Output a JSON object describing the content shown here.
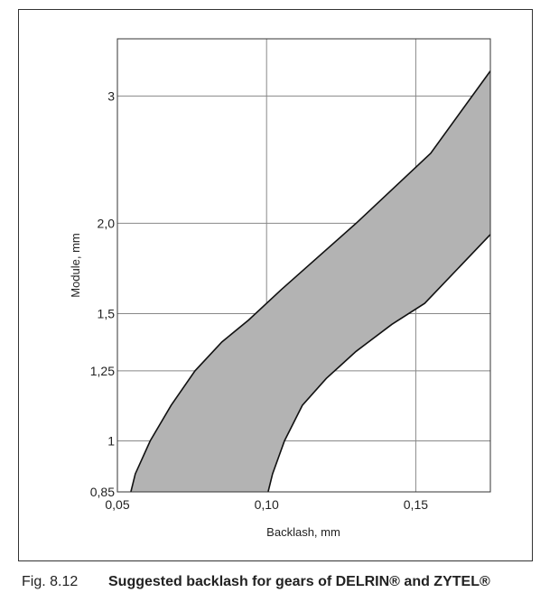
{
  "caption": {
    "number": "Fig. 8.12",
    "text": "Suggested backlash for gears of DELRIN® and ZYTEL®"
  },
  "chart_data": {
    "type": "area",
    "title": "",
    "xlabel": "Backlash, mm",
    "ylabel": "Module, mm",
    "x_ticks": [
      {
        "value": 0.05,
        "label": "0,05"
      },
      {
        "value": 0.1,
        "label": "0,10"
      },
      {
        "value": 0.15,
        "label": "0,15"
      }
    ],
    "y_ticks": [
      {
        "value": 0.85,
        "label": "0,85"
      },
      {
        "value": 1.0,
        "label": "1"
      },
      {
        "value": 1.25,
        "label": "1,25"
      },
      {
        "value": 1.5,
        "label": "1,5"
      },
      {
        "value": 2.0,
        "label": "2,0"
      },
      {
        "value": 3.0,
        "label": "3"
      }
    ],
    "xlim": [
      0.05,
      0.175
    ],
    "y_scale": "log",
    "ylim": [
      0.85,
      3.6
    ],
    "grid": true,
    "band_color": "#b3b3b3",
    "series": [
      {
        "values": [
          {
            "x": 0.0545,
            "y": 0.85
          },
          {
            "x": 0.056,
            "y": 0.9
          },
          {
            "x": 0.061,
            "y": 1.0
          },
          {
            "x": 0.068,
            "y": 1.12
          },
          {
            "x": 0.076,
            "y": 1.25
          },
          {
            "x": 0.085,
            "y": 1.37
          },
          {
            "x": 0.094,
            "y": 1.47
          },
          {
            "x": 0.105,
            "y": 1.62
          },
          {
            "x": 0.13,
            "y": 2.0
          },
          {
            "x": 0.155,
            "y": 2.5
          },
          {
            "x": 0.175,
            "y": 3.25
          }
        ]
      },
      {
        "values": [
          {
            "x": 0.1005,
            "y": 0.85
          },
          {
            "x": 0.102,
            "y": 0.9
          },
          {
            "x": 0.106,
            "y": 1.0
          },
          {
            "x": 0.112,
            "y": 1.12
          },
          {
            "x": 0.12,
            "y": 1.22
          },
          {
            "x": 0.13,
            "y": 1.33
          },
          {
            "x": 0.142,
            "y": 1.45
          },
          {
            "x": 0.153,
            "y": 1.55
          },
          {
            "x": 0.175,
            "y": 1.93
          }
        ]
      }
    ]
  }
}
